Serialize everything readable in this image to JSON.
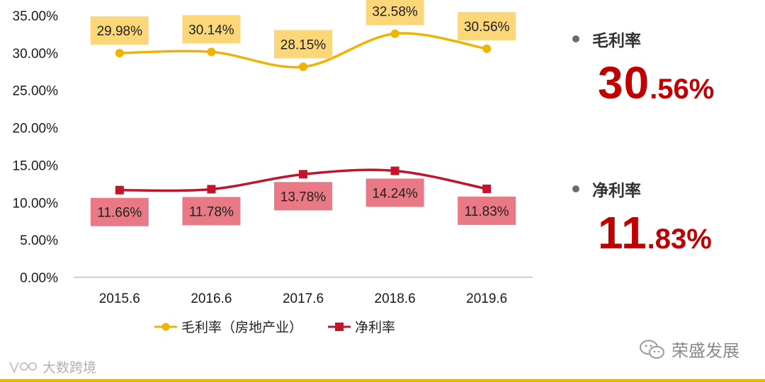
{
  "chart_data": {
    "type": "line",
    "categories": [
      "2015.6",
      "2016.6",
      "2017.6",
      "2018.6",
      "2019.6"
    ],
    "ylim": [
      0,
      35
    ],
    "y_ticks": [
      "0.00%",
      "5.00%",
      "10.00%",
      "15.00%",
      "20.00%",
      "25.00%",
      "30.00%",
      "35.00%"
    ],
    "y_tick_values": [
      0,
      5,
      10,
      15,
      20,
      25,
      30,
      35
    ],
    "grid": false,
    "legend_position": "bottom",
    "series": [
      {
        "name": "毛利率（房地产业）",
        "marker": "circle",
        "color": "#f0b400",
        "label_bg": "#fbd77a",
        "label_position": "above",
        "values": [
          29.98,
          30.14,
          28.15,
          32.58,
          30.56
        ],
        "labels": [
          "29.98%",
          "30.14%",
          "28.15%",
          "32.58%",
          "30.56%"
        ]
      },
      {
        "name": "净利率",
        "marker": "square",
        "color": "#c0152b",
        "label_bg": "#e87985",
        "label_position": "below",
        "values": [
          11.66,
          11.78,
          13.78,
          14.24,
          11.83
        ],
        "labels": [
          "11.66%",
          "11.78%",
          "13.78%",
          "14.24%",
          "11.83%"
        ]
      }
    ]
  },
  "summary": [
    {
      "name": "毛利率",
      "value_big": "30",
      "value_small": ".56%"
    },
    {
      "name": "净利率",
      "value_big": "11",
      "value_small": ".83%"
    }
  ],
  "watermark_right": "荣盛发展",
  "watermark_left": "大数跨境"
}
